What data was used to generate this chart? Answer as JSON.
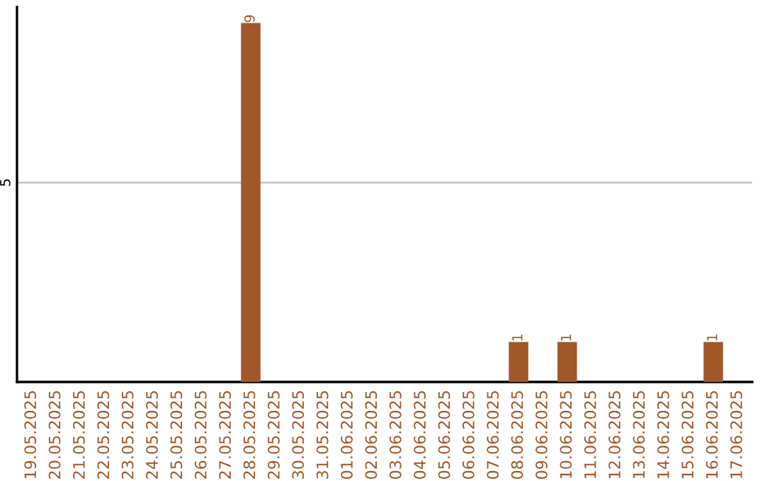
{
  "chart_data": {
    "type": "bar",
    "categories": [
      "19.05.2025",
      "20.05.2025",
      "21.05.2025",
      "22.05.2025",
      "23.05.2025",
      "24.05.2025",
      "25.05.2025",
      "26.05.2025",
      "27.05.2025",
      "28.05.2025",
      "29.05.2025",
      "30.05.2025",
      "31.05.2025",
      "01.06.2025",
      "02.06.2025",
      "03.06.2025",
      "04.06.2025",
      "05.06.2025",
      "06.06.2025",
      "07.06.2025",
      "08.06.2025",
      "09.06.2025",
      "10.06.2025",
      "11.06.2025",
      "12.06.2025",
      "13.06.2025",
      "14.06.2025",
      "15.06.2025",
      "16.06.2025",
      "17.06.2025"
    ],
    "values": [
      0,
      0,
      0,
      0,
      0,
      0,
      0,
      0,
      0,
      9,
      0,
      0,
      0,
      0,
      0,
      0,
      0,
      0,
      0,
      0,
      1,
      0,
      1,
      0,
      0,
      0,
      0,
      0,
      1,
      0
    ],
    "value_labels": [
      null,
      null,
      null,
      null,
      null,
      null,
      null,
      null,
      null,
      "9",
      null,
      null,
      null,
      null,
      null,
      null,
      null,
      null,
      null,
      null,
      "1",
      null,
      "1",
      null,
      null,
      null,
      null,
      null,
      "1",
      null
    ],
    "color": "#a0572a",
    "ylim": [
      0,
      9.4
    ],
    "yticks": [
      5
    ],
    "grid": "y"
  }
}
